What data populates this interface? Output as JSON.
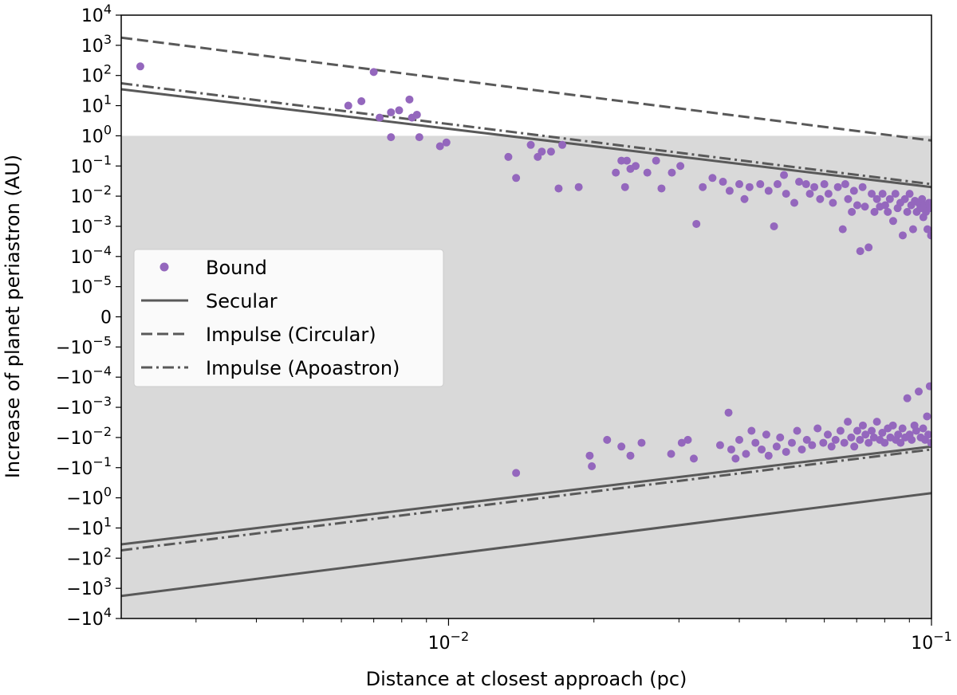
{
  "chart_data": {
    "type": "scatter",
    "xlabel": "Distance at closest approach (pc)",
    "ylabel": "Increase of planet periastron (AU)",
    "xscale": "log",
    "yscale": "symlog",
    "xlim": [
      0.0021,
      0.1
    ],
    "ylim": [
      -10000,
      10000
    ],
    "x_ticks": [
      {
        "value": 0.01,
        "base": "10",
        "exp": "−2"
      },
      {
        "value": 0.1,
        "base": "10",
        "exp": "−1"
      }
    ],
    "y_ticks": [
      {
        "value": 10000,
        "base": "10",
        "exp": "4"
      },
      {
        "value": 1000,
        "base": "10",
        "exp": "3"
      },
      {
        "value": 100,
        "base": "10",
        "exp": "2"
      },
      {
        "value": 10,
        "base": "10",
        "exp": "1"
      },
      {
        "value": 1,
        "base": "10",
        "exp": "0"
      },
      {
        "value": 0.1,
        "base": "10",
        "exp": "−1"
      },
      {
        "value": 0.01,
        "base": "10",
        "exp": "−2"
      },
      {
        "value": 0.001,
        "base": "10",
        "exp": "−3"
      },
      {
        "value": 0.0001,
        "base": "10",
        "exp": "−4"
      },
      {
        "value": 1e-05,
        "base": "10",
        "exp": "−5"
      },
      {
        "value": 0,
        "base": "0",
        "exp": ""
      },
      {
        "value": -1e-05,
        "base": "−10",
        "exp": "−5"
      },
      {
        "value": -0.0001,
        "base": "−10",
        "exp": "−4"
      },
      {
        "value": -0.001,
        "base": "−10",
        "exp": "−3"
      },
      {
        "value": -0.01,
        "base": "−10",
        "exp": "−2"
      },
      {
        "value": -0.1,
        "base": "−10",
        "exp": "−1"
      },
      {
        "value": -1,
        "base": "−10",
        "exp": "0"
      },
      {
        "value": -10,
        "base": "−10",
        "exp": "1"
      },
      {
        "value": -100,
        "base": "−10",
        "exp": "2"
      },
      {
        "value": -1000,
        "base": "−10",
        "exp": "3"
      },
      {
        "value": -10000,
        "base": "−10",
        "exp": "4"
      }
    ],
    "shaded_band": {
      "y_from": -10000,
      "y_to": 1,
      "color": "#d9d9d9"
    },
    "grid": false,
    "legend_position": "center-left",
    "series": [
      {
        "name": "Bound",
        "kind": "points",
        "color": "#9467bd",
        "points": [
          [
            0.0023,
            200
          ],
          [
            0.0062,
            10
          ],
          [
            0.0066,
            14
          ],
          [
            0.007,
            130
          ],
          [
            0.0072,
            4
          ],
          [
            0.0076,
            6
          ],
          [
            0.0076,
            0.9
          ],
          [
            0.0079,
            7
          ],
          [
            0.0083,
            16
          ],
          [
            0.0084,
            4
          ],
          [
            0.0086,
            5
          ],
          [
            0.0087,
            0.9
          ],
          [
            0.0096,
            0.45
          ],
          [
            0.0099,
            0.6
          ],
          [
            0.0133,
            0.2
          ],
          [
            0.0138,
            0.04
          ],
          [
            0.0148,
            0.5
          ],
          [
            0.0153,
            0.2
          ],
          [
            0.0156,
            0.3
          ],
          [
            0.0163,
            0.3
          ],
          [
            0.0169,
            0.018
          ],
          [
            0.0172,
            0.5
          ],
          [
            0.0186,
            0.02
          ],
          [
            0.0222,
            0.06
          ],
          [
            0.0228,
            0.15
          ],
          [
            0.0232,
            0.02
          ],
          [
            0.0234,
            0.15
          ],
          [
            0.0238,
            0.08
          ],
          [
            0.0244,
            0.1
          ],
          [
            0.0258,
            0.06
          ],
          [
            0.0269,
            0.15
          ],
          [
            0.0276,
            0.018
          ],
          [
            0.029,
            0.06
          ],
          [
            0.0302,
            0.1
          ],
          [
            0.0326,
            0.0012
          ],
          [
            0.0336,
            0.02
          ],
          [
            0.0352,
            0.04
          ],
          [
            0.037,
            0.03
          ],
          [
            0.0382,
            0.015
          ],
          [
            0.04,
            0.025
          ],
          [
            0.041,
            0.008
          ],
          [
            0.042,
            0.02
          ],
          [
            0.0442,
            0.025
          ],
          [
            0.046,
            0.015
          ],
          [
            0.0472,
            0.001
          ],
          [
            0.048,
            0.025
          ],
          [
            0.0495,
            0.05
          ],
          [
            0.05,
            0.012
          ],
          [
            0.052,
            0.006
          ],
          [
            0.0532,
            0.03
          ],
          [
            0.055,
            0.025
          ],
          [
            0.056,
            0.012
          ],
          [
            0.0572,
            0.02
          ],
          [
            0.0588,
            0.008
          ],
          [
            0.06,
            0.025
          ],
          [
            0.0612,
            0.012
          ],
          [
            0.0625,
            0.006
          ],
          [
            0.064,
            0.02
          ],
          [
            0.0655,
            0.0008
          ],
          [
            0.0663,
            0.025
          ],
          [
            0.0672,
            0.008
          ],
          [
            0.0684,
            0.003
          ],
          [
            0.0691,
            0.015
          ],
          [
            0.0702,
            0.005
          ],
          [
            0.0712,
            0.00015
          ],
          [
            0.072,
            0.02
          ],
          [
            0.0728,
            0.0045
          ],
          [
            0.0741,
            0.0002
          ],
          [
            0.0752,
            0.012
          ],
          [
            0.0762,
            0.003
          ],
          [
            0.0771,
            0.008
          ],
          [
            0.0782,
            0.0045
          ],
          [
            0.0792,
            0.012
          ],
          [
            0.0802,
            0.005
          ],
          [
            0.0812,
            0.003
          ],
          [
            0.082,
            0.008
          ],
          [
            0.0833,
            0.0015
          ],
          [
            0.0842,
            0.012
          ],
          [
            0.0851,
            0.004
          ],
          [
            0.0862,
            0.006
          ],
          [
            0.0872,
            0.0005
          ],
          [
            0.0881,
            0.008
          ],
          [
            0.0891,
            0.003
          ],
          [
            0.0901,
            0.012
          ],
          [
            0.0908,
            0.005
          ],
          [
            0.0916,
            0.0008
          ],
          [
            0.0924,
            0.007
          ],
          [
            0.0932,
            0.003
          ],
          [
            0.094,
            0.006
          ],
          [
            0.0948,
            0.004
          ],
          [
            0.0956,
            0.008
          ],
          [
            0.0962,
            0.002
          ],
          [
            0.0968,
            0.005
          ],
          [
            0.0974,
            0.003
          ],
          [
            0.0981,
            0.0008
          ],
          [
            0.0988,
            0.006
          ],
          [
            0.0994,
            0.004
          ],
          [
            0.0998,
            0.0005
          ],
          [
            0.0138,
            -0.15
          ],
          [
            0.0196,
            -0.04
          ],
          [
            0.0198,
            -0.09
          ],
          [
            0.0213,
            -0.012
          ],
          [
            0.0228,
            -0.02
          ],
          [
            0.0238,
            -0.04
          ],
          [
            0.0251,
            -0.015
          ],
          [
            0.0289,
            -0.035
          ],
          [
            0.0304,
            -0.015
          ],
          [
            0.0313,
            -0.012
          ],
          [
            0.0322,
            -0.05
          ],
          [
            0.0365,
            -0.018
          ],
          [
            0.038,
            -0.0015
          ],
          [
            0.0385,
            -0.025
          ],
          [
            0.0393,
            -0.05
          ],
          [
            0.04,
            -0.012
          ],
          [
            0.0413,
            -0.035
          ],
          [
            0.0424,
            -0.006
          ],
          [
            0.0432,
            -0.015
          ],
          [
            0.0445,
            -0.025
          ],
          [
            0.0455,
            -0.008
          ],
          [
            0.046,
            -0.04
          ],
          [
            0.0478,
            -0.02
          ],
          [
            0.0486,
            -0.01
          ],
          [
            0.05,
            -0.03
          ],
          [
            0.0514,
            -0.015
          ],
          [
            0.0527,
            -0.006
          ],
          [
            0.0539,
            -0.025
          ],
          [
            0.0552,
            -0.012
          ],
          [
            0.0566,
            -0.018
          ],
          [
            0.0581,
            -0.005
          ],
          [
            0.0597,
            -0.015
          ],
          [
            0.061,
            -0.008
          ],
          [
            0.0621,
            -0.02
          ],
          [
            0.0633,
            -0.012
          ],
          [
            0.0648,
            -0.006
          ],
          [
            0.066,
            -0.015
          ],
          [
            0.0671,
            -0.003
          ],
          [
            0.0682,
            -0.01
          ],
          [
            0.0692,
            -0.02
          ],
          [
            0.0702,
            -0.006
          ],
          [
            0.0711,
            -0.012
          ],
          [
            0.0721,
            -0.004
          ],
          [
            0.073,
            -0.008
          ],
          [
            0.0741,
            -0.015
          ],
          [
            0.0752,
            -0.006
          ],
          [
            0.076,
            -0.01
          ],
          [
            0.0771,
            -0.003
          ],
          [
            0.0782,
            -0.012
          ],
          [
            0.0791,
            -0.007
          ],
          [
            0.08,
            -0.015
          ],
          [
            0.0812,
            -0.005
          ],
          [
            0.0822,
            -0.01
          ],
          [
            0.0832,
            -0.004
          ],
          [
            0.0844,
            -0.012
          ],
          [
            0.0853,
            -0.008
          ],
          [
            0.0863,
            -0.015
          ],
          [
            0.0871,
            -0.005
          ],
          [
            0.0882,
            -0.01
          ],
          [
            0.0891,
            -0.0005
          ],
          [
            0.0901,
            -0.008
          ],
          [
            0.091,
            -0.012
          ],
          [
            0.0922,
            -0.004
          ],
          [
            0.093,
            -0.006
          ],
          [
            0.0941,
            -0.0003
          ],
          [
            0.095,
            -0.01
          ],
          [
            0.0961,
            -0.005
          ],
          [
            0.097,
            -0.012
          ],
          [
            0.0979,
            -0.002
          ],
          [
            0.0985,
            -0.008
          ],
          [
            0.0992,
            -0.0002
          ],
          [
            0.0998,
            -0.015
          ]
        ]
      },
      {
        "name": "Secular",
        "kind": "line",
        "style": "solid",
        "color": "#595959",
        "x": [
          0.0021,
          0.1
        ],
        "y": [
          35,
          0.02
        ]
      },
      {
        "name": "Impulse (Circular)",
        "kind": "line",
        "style": "dashed",
        "color": "#595959",
        "x": [
          0.0021,
          0.1
        ],
        "y": [
          1800,
          0.7
        ]
      },
      {
        "name": "Impulse (Apoastron)",
        "kind": "line",
        "style": "dashdot",
        "color": "#595959",
        "x": [
          0.0021,
          0.1
        ],
        "y": [
          55,
          0.025
        ]
      },
      {
        "kind": "line",
        "style": "solid",
        "color": "#595959",
        "x": [
          0.0021,
          0.1
        ],
        "y": [
          -35,
          -0.02
        ]
      },
      {
        "kind": "line",
        "style": "dashdot",
        "color": "#595959",
        "x": [
          0.0021,
          0.1
        ],
        "y": [
          -55,
          -0.025
        ]
      },
      {
        "kind": "line",
        "style": "solid",
        "color": "#595959",
        "x": [
          0.0021,
          0.1
        ],
        "y": [
          -1800,
          -0.7
        ]
      }
    ],
    "legend": [
      {
        "label": "Bound",
        "marker": "dot",
        "color": "#9467bd"
      },
      {
        "label": "Secular",
        "marker": "solid",
        "color": "#595959"
      },
      {
        "label": "Impulse (Circular)",
        "marker": "dashed",
        "color": "#595959"
      },
      {
        "label": "Impulse (Apoastron)",
        "marker": "dashdot",
        "color": "#595959"
      }
    ]
  }
}
